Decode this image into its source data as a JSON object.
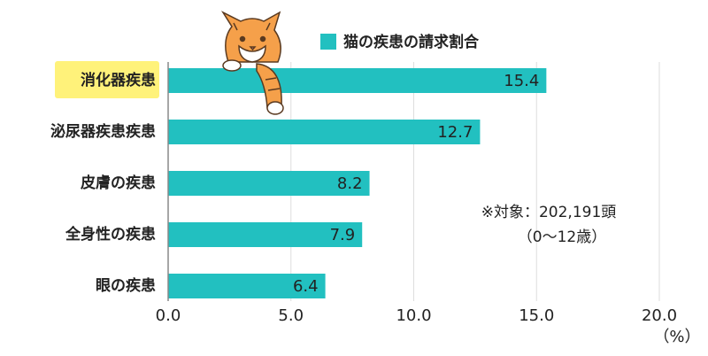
{
  "chart_data": {
    "type": "hbar",
    "categories": [
      "消化器疾患",
      "泌尿器疾患疾患",
      "皮膚の疾患",
      "全身性の疾患",
      "眼の疾患"
    ],
    "series": [
      {
        "name": "猫の疾患の請求割合",
        "color": "#22c0c0",
        "values": [
          15.4,
          12.7,
          8.2,
          7.9,
          6.4
        ]
      }
    ],
    "xlim": [
      0,
      20
    ],
    "xticks": [
      {
        "value": 0,
        "label": "0.0"
      },
      {
        "value": 5,
        "label": "5.0"
      },
      {
        "value": 10,
        "label": "10.0"
      },
      {
        "value": 15,
        "label": "15.0"
      },
      {
        "value": 20,
        "label": "20.0"
      }
    ],
    "x_label": "（%）",
    "grid": true,
    "annotations": [
      "※対象：202,191頭",
      "（0〜12歳）"
    ]
  }
}
